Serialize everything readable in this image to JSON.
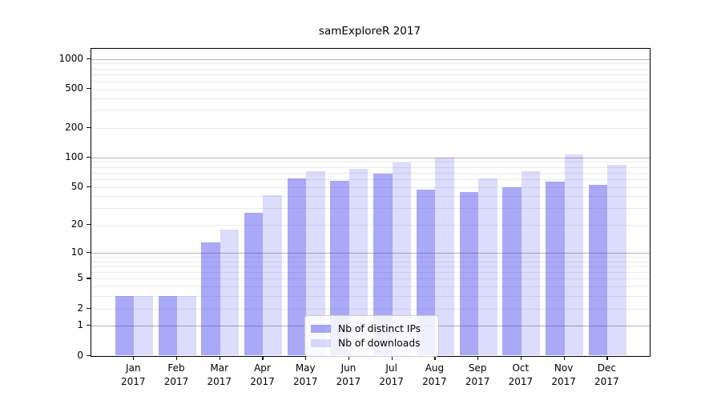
{
  "title": "samExploreR 2017",
  "chart_data": {
    "type": "bar",
    "title": "samExploreR 2017",
    "categories": [
      "Jan 2017",
      "Feb 2017",
      "Mar 2017",
      "Apr 2017",
      "May 2017",
      "Jun 2017",
      "Jul 2017",
      "Aug 2017",
      "Sep 2017",
      "Oct 2017",
      "Nov 2017",
      "Dec 2017"
    ],
    "months": [
      "Jan",
      "Feb",
      "Mar",
      "Apr",
      "May",
      "Jun",
      "Jul",
      "Aug",
      "Sep",
      "Oct",
      "Nov",
      "Dec"
    ],
    "year": "2017",
    "series": [
      {
        "name": "Nb of distinct IPs",
        "color": "rgba(50,50,235,0.42)",
        "values": [
          3,
          3,
          13,
          27,
          61,
          58,
          69,
          47,
          44,
          50,
          57,
          52
        ]
      },
      {
        "name": "Nb of downloads",
        "color": "rgba(50,50,235,0.17)",
        "values": [
          3,
          3,
          18,
          41,
          73,
          77,
          89,
          100,
          61,
          73,
          107,
          84
        ]
      }
    ],
    "y_axis": {
      "scale": "log10(1+y)",
      "ticks": [
        0,
        1,
        2,
        5,
        10,
        20,
        50,
        100,
        200,
        500,
        1000
      ],
      "major_gridlines": [
        1,
        10,
        100,
        1000
      ],
      "minor_gridlines": [
        2,
        3,
        4,
        5,
        6,
        7,
        8,
        9,
        20,
        30,
        40,
        50,
        60,
        70,
        80,
        90,
        200,
        300,
        400,
        500,
        600,
        700,
        800,
        900
      ],
      "ylim": [
        0,
        1270
      ]
    },
    "grid": true,
    "legend_position": "inside-bottom-center",
    "colors": {
      "bar_dark_on_white": "#a8a8f8",
      "bar_light_on_white": "#d9d9f9",
      "major_grid": "#b3b3b3",
      "minor_grid": "#ebebeb"
    }
  },
  "legend": {
    "items": [
      "Nb of distinct IPs",
      "Nb of downloads"
    ]
  }
}
